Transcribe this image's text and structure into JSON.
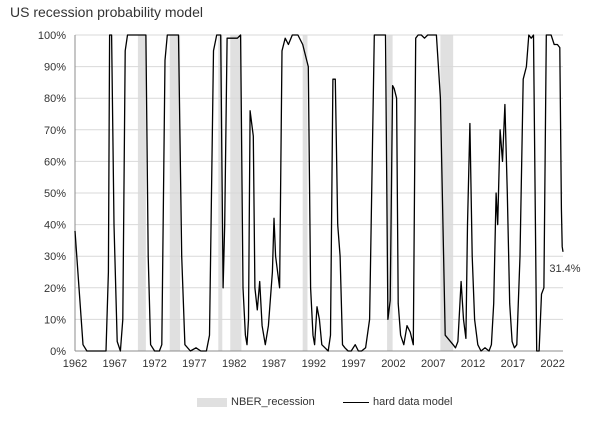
{
  "chart_data": {
    "type": "line",
    "title": "US recession probability model",
    "xlabel": "",
    "ylabel": "",
    "xlim": [
      1962,
      2023.3
    ],
    "ylim": [
      0,
      100
    ],
    "x_ticks": [
      "1962",
      "1967",
      "1972",
      "1977",
      "1982",
      "1987",
      "1992",
      "1997",
      "2002",
      "2007",
      "2012",
      "2017",
      "2022"
    ],
    "y_ticks": [
      "0%",
      "10%",
      "20%",
      "30%",
      "40%",
      "50%",
      "60%",
      "70%",
      "80%",
      "90%",
      "100%"
    ],
    "grid": "horizontal",
    "legend": "bottom",
    "recessions": [
      [
        1969.9,
        1970.9
      ],
      [
        1973.9,
        1975.2
      ],
      [
        1980.0,
        1980.5
      ],
      [
        1981.5,
        1982.9
      ],
      [
        1990.6,
        1991.2
      ],
      [
        2001.2,
        2001.9
      ],
      [
        2007.9,
        2009.5
      ]
    ],
    "series": [
      {
        "name": "hard data model",
        "color": "#000000",
        "x": [
          1962.0,
          1962.5,
          1963.0,
          1963.5,
          1964.0,
          1965.0,
          1965.9,
          1966.2,
          1966.35,
          1966.6,
          1966.9,
          1967.3,
          1967.7,
          1968.0,
          1968.3,
          1968.6,
          1969.0,
          1969.4,
          1970.0,
          1970.9,
          1971.2,
          1971.5,
          1972.0,
          1972.6,
          1972.9,
          1973.3,
          1973.6,
          1974.0,
          1975.0,
          1975.4,
          1975.8,
          1976.5,
          1977.2,
          1977.8,
          1978.5,
          1978.9,
          1979.4,
          1979.8,
          1980.3,
          1980.6,
          1980.8,
          1981.1,
          1981.7,
          1982.4,
          1982.8,
          1983.1,
          1983.4,
          1983.6,
          1983.8,
          1984.0,
          1984.2,
          1984.4,
          1984.6,
          1984.9,
          1985.2,
          1985.5,
          1985.9,
          1986.3,
          1986.8,
          1987.0,
          1987.2,
          1987.4,
          1987.7,
          1988.0,
          1988.4,
          1988.8,
          1989.3,
          1990.0,
          1990.6,
          1991.3,
          1991.6,
          1991.9,
          1992.1,
          1992.4,
          1992.7,
          1993.0,
          1993.4,
          1993.8,
          1994.1,
          1994.4,
          1994.7,
          1995.0,
          1995.3,
          1995.6,
          1995.9,
          1996.3,
          1996.7,
          1997.2,
          1997.6,
          1998.0,
          1998.5,
          1999.0,
          1999.6,
          2000.0,
          2000.3,
          2000.7,
          2001.0,
          2001.3,
          2001.6,
          2001.9,
          2002.1,
          2002.4,
          2002.6,
          2002.9,
          2003.3,
          2003.7,
          2004.1,
          2004.5,
          2004.8,
          2005.1,
          2005.5,
          2005.9,
          2006.3,
          2006.8,
          2007.4,
          2007.9,
          2008.5,
          2009.5,
          2009.8,
          2010.1,
          2010.5,
          2010.8,
          2011.1,
          2011.3,
          2011.6,
          2011.9,
          2012.2,
          2012.6,
          2013.0,
          2013.5,
          2014.0,
          2014.3,
          2014.6,
          2014.9,
          2015.1,
          2015.4,
          2015.7,
          2016.0,
          2016.3,
          2016.6,
          2016.9,
          2017.2,
          2017.5,
          2017.9,
          2018.3,
          2018.7,
          2019.0,
          2019.3,
          2019.6,
          2020.0,
          2020.3,
          2020.6,
          2020.9,
          2021.2,
          2021.5,
          2021.8,
          2022.2,
          2022.6,
          2022.9,
          2023.1,
          2023.2,
          2023.3
        ],
        "values": [
          38,
          20,
          2,
          0,
          0,
          0,
          0,
          25,
          100,
          100,
          40,
          3,
          0,
          10,
          95,
          100,
          100,
          100,
          100,
          100,
          30,
          2,
          0,
          0,
          2,
          92,
          100,
          100,
          100,
          30,
          2,
          0,
          1,
          0,
          0,
          5,
          95,
          100,
          100,
          20,
          40,
          99,
          99,
          99,
          100,
          20,
          5,
          2,
          10,
          76,
          72,
          68,
          20,
          13,
          22,
          8,
          2,
          8,
          25,
          42,
          30,
          26,
          20,
          95,
          99,
          97,
          100,
          100,
          97,
          90,
          20,
          5,
          2,
          14,
          10,
          2,
          1,
          0,
          5,
          86,
          86,
          40,
          30,
          2,
          1,
          0,
          0,
          2,
          0,
          0,
          1,
          10,
          100,
          100,
          100,
          100,
          100,
          10,
          16,
          84,
          83,
          80,
          15,
          5,
          2,
          8,
          6,
          2,
          99,
          100,
          100,
          99,
          100,
          100,
          100,
          80,
          5,
          2,
          1,
          3,
          22,
          10,
          4,
          40,
          72,
          30,
          10,
          2,
          0,
          1,
          0,
          2,
          15,
          50,
          40,
          70,
          60,
          78,
          50,
          15,
          3,
          1,
          2,
          30,
          86,
          90,
          100,
          99,
          100,
          0,
          0,
          18,
          20,
          100,
          100,
          100,
          97,
          97,
          96,
          45,
          33,
          31.4
        ]
      }
    ],
    "last_value_label": "31.4%",
    "legend_items": [
      {
        "label": "NBER_recession",
        "color": "#e0e0e0"
      },
      {
        "label": "hard data model",
        "color": "#000000"
      }
    ]
  }
}
